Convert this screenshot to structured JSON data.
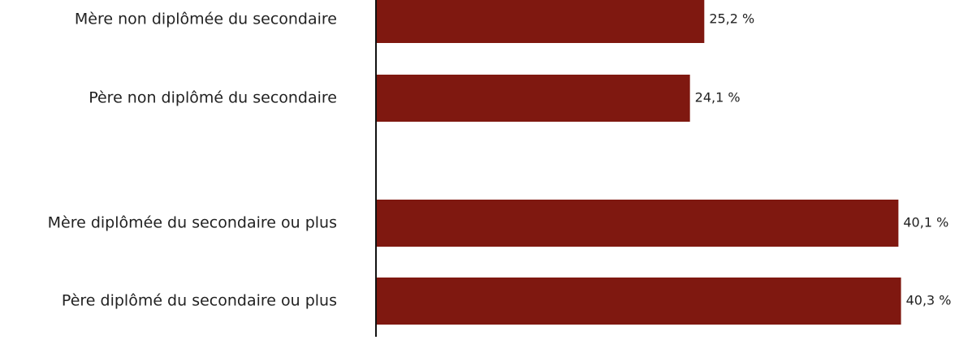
{
  "chart_data": {
    "type": "barh",
    "categories": [
      "Mère non diplômée du secondaire",
      "Père non diplômé du secondaire",
      "Mère diplômée du secondaire ou plus",
      "Père diplômé du secondaire ou plus"
    ],
    "values": [
      25.2,
      24.1,
      40.1,
      40.3
    ],
    "value_labels": [
      "25,2 %",
      "24,1 %",
      "40,1 %",
      "40,3 %"
    ],
    "color": "#7f1810",
    "xlim": [
      0,
      45
    ]
  }
}
